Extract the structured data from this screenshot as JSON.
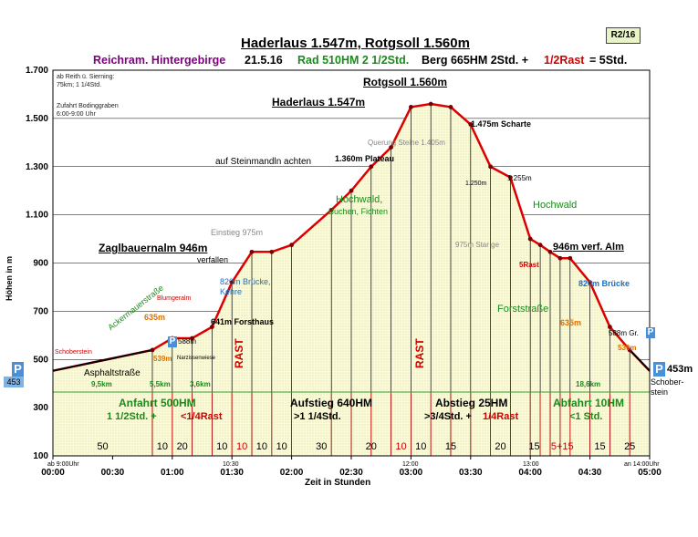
{
  "header": {
    "title": "Haderlaus 1.547m, Rotgsoll 1.560m",
    "badge": "R2/16",
    "region": "Reichram. Hintergebirge",
    "date": "21.5.16",
    "rad": "Rad 510HM  2 1/2Std.",
    "berg": "Berg 665HM  2Std. +",
    "rast": "1/2Rast",
    "total": "= 5Std."
  },
  "notes": {
    "top_left_1": "ab Reith ü. Sierning:",
    "top_left_2": "75km; 1 1/4Std.",
    "top_left_3": "Zufahrt Bodinggraben",
    "top_left_4": "6:00-9:00 Uhr"
  },
  "axes": {
    "ylabel": "Höhen in m",
    "xlabel": "Zeit in Stunden"
  },
  "parking": {
    "left_p": "P",
    "left_val": "453",
    "right_p": "P",
    "right_val": "453m",
    "p_mid": "P"
  },
  "labels": {
    "schoberstein_left": "Schoberstein",
    "asphalt": "Asphaltstraße",
    "km95": "9,5km",
    "km55": "5,5km",
    "km36": "3,6km",
    "m539l": "539m",
    "narzissen": "Narzissenwiese",
    "m588": "588m",
    "m635l": "635m",
    "blumgerau": "Blumgeralm",
    "ackermauer": "Ackermauerstraße",
    "forsthaus": "641m Forsthaus",
    "bruecke_l": "820m Brücke, Kehre",
    "zagl": "Zaglbauernalm 946m",
    "verfallen": "verfallen",
    "einstieg": "Einstieg 975m",
    "steinmandl": "auf Steinmandln achten",
    "haderlaus": "Haderlaus 1.547m",
    "rotgsoll": "Rotgsoll 1.560m",
    "querung": "Querung Steine 1.405m",
    "plateau": "1.360m Plateau",
    "hochwald_l": "Hochwald,",
    "buchen": "Buchen, Fichten",
    "scharte": "1.475m Scharte",
    "m1255": "1.255m",
    "m1250": "1.250m",
    "hochwald_r": "Hochwald",
    "starige": "975m Star ge",
    "verf_alm": "946m verf. Alm",
    "rast5": "5Rast",
    "bruecke_r": "820m Brücke",
    "forststr": "Forststraße",
    "m635r": "635m",
    "m588gr": "588m Gr.",
    "m539r": "539m",
    "km186": "18,6km",
    "schoberstein_r": "Schober-stein",
    "rast_v1": "RAST",
    "rast_v2": "RAST"
  },
  "sections": [
    {
      "title": "Anfahrt 500HM",
      "sub1": "1 1/2Std. +",
      "sub2": "<1/4Rast"
    },
    {
      "title": "Aufstieg 640HM",
      "sub1": ">1 1/4Std.",
      "sub2": ""
    },
    {
      "title": "Abstieg 25HM",
      "sub1": ">3/4Std. +",
      "sub2": "1/4Rast"
    },
    {
      "title": "Abfahrt 10HM",
      "sub1": "<1 Std.",
      "sub2": ""
    }
  ],
  "segment_labels": [
    "50",
    "10",
    "20",
    "10",
    "10",
    "10",
    "10",
    "30",
    "20",
    "10",
    "10",
    "15",
    "20",
    "15",
    "5+15",
    "15",
    "25"
  ],
  "time_marks": {
    "t0": "ab 9:00Uhr",
    "t1030": "10:30",
    "t1200": "12:00",
    "t1300": "13:00",
    "t1400": "an 14:00Uhr"
  },
  "chart_data": {
    "type": "area",
    "xlabel": "Zeit in Stunden",
    "ylabel": "Höhen in m",
    "ylim": [
      100,
      1700
    ],
    "y_ticks": [
      100,
      300,
      500,
      700,
      900,
      1100,
      1300,
      1500,
      1700
    ],
    "y_tick_labels": [
      "100",
      "300",
      "500",
      "700",
      "900",
      "1.100",
      "1.300",
      "1.500",
      "1.700"
    ],
    "x_ticks": [
      0,
      30,
      60,
      90,
      120,
      150,
      180,
      210,
      240,
      270,
      300
    ],
    "x_tick_labels": [
      "00:00",
      "00:30",
      "01:00",
      "01:30",
      "02:00",
      "02:30",
      "03:00",
      "03:30",
      "04:00",
      "04:30",
      "05:00"
    ],
    "grid": true,
    "series": [
      {
        "color": "#cc0000",
        "x": [
          0,
          50,
          60,
          70,
          80,
          90,
          100,
          110,
          120,
          140,
          150,
          160,
          170,
          180,
          190,
          200,
          210,
          220,
          230,
          240,
          245,
          250,
          255,
          260,
          270,
          280,
          290,
          300
        ],
        "y": [
          453,
          539,
          588,
          588,
          635,
          820,
          946,
          946,
          975,
          1120,
          1200,
          1300,
          1380,
          1547,
          1560,
          1547,
          1475,
          1300,
          1255,
          1000,
          975,
          946,
          920,
          920,
          820,
          635,
          539,
          453
        ]
      }
    ]
  }
}
